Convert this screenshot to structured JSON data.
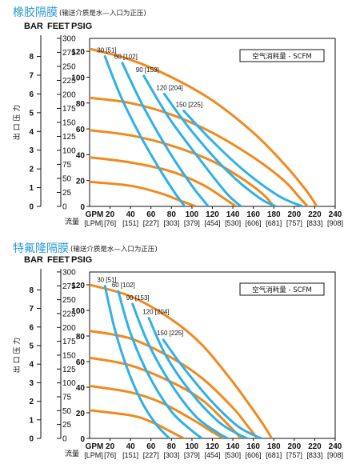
{
  "chart_data": [
    {
      "type": "line",
      "title": "橡胶隔膜",
      "subtitle": "(输送介质是水—入口为正压)",
      "y_unit_labels": [
        "BAR",
        "FEET",
        "PSIG"
      ],
      "y_ticks_bar": [
        "0",
        "1",
        "2",
        "3",
        "4",
        "5",
        "6",
        "7",
        "8"
      ],
      "y_ticks_feet": [
        "0",
        "25",
        "50",
        "75",
        "100",
        "125",
        "150",
        "175",
        "200",
        "225",
        "250",
        "275",
        "300"
      ],
      "y_ticks_psig": [
        "0",
        "20",
        "40",
        "60",
        "80",
        "100",
        "120"
      ],
      "ylabel": "出 口 压 力",
      "xlabel": "流量",
      "x_unit_gpm": "GPM",
      "x_unit_lpm": "[LPM]",
      "x_ticks_gpm": [
        "20",
        "40",
        "60",
        "80",
        "100",
        "120",
        "140",
        "160",
        "180",
        "200",
        "220",
        "240"
      ],
      "x_ticks_lpm": [
        "[76]",
        "[151]",
        "[227]",
        "[303]",
        "[379]",
        "[454]",
        "[530]",
        "[606]",
        "[681]",
        "[757]",
        "[833]",
        "[908]"
      ],
      "xlim": [
        0,
        240
      ],
      "ylim": [
        0,
        130
      ],
      "legend": "空气消耗量 - SCFM",
      "legend_position": "top-right",
      "pressure_curves": [
        {
          "x": [
            0,
            40,
            80,
            120,
            160,
            190,
            212,
            222
          ],
          "y": [
            122,
            113.5,
            100,
            82,
            57,
            33,
            12,
            0
          ]
        },
        {
          "x": [
            0,
            40,
            80,
            120,
            160,
            190,
            205,
            213
          ],
          "y": [
            84,
            80,
            71,
            57,
            38,
            20,
            7,
            0
          ]
        },
        {
          "x": [
            0,
            40,
            80,
            120,
            150,
            170,
            180
          ],
          "y": [
            59,
            55,
            47,
            35,
            21,
            9,
            0
          ]
        },
        {
          "x": [
            0,
            40,
            80,
            110,
            130,
            143
          ],
          "y": [
            38,
            34,
            27,
            17,
            7,
            0
          ]
        },
        {
          "x": [
            0,
            40,
            70,
            90,
            104
          ],
          "y": [
            19,
            16,
            10,
            4,
            0
          ]
        }
      ],
      "air_curves": [
        {
          "label": "30 [51]",
          "x": [
            15,
            30,
            48,
            66,
            82,
            93
          ],
          "y": [
            116,
            86,
            57,
            32,
            12,
            0
          ]
        },
        {
          "label": "60 [102]",
          "x": [
            32,
            52,
            78,
            100,
            116
          ],
          "y": [
            111,
            78,
            42,
            16,
            0
          ]
        },
        {
          "label": "90 [153]",
          "x": [
            53,
            78,
            110,
            134,
            148
          ],
          "y": [
            101,
            68,
            34,
            10,
            0
          ]
        },
        {
          "label": "120 [204]",
          "x": [
            73,
            100,
            135,
            165,
            182
          ],
          "y": [
            87,
            58,
            27,
            7,
            0
          ]
        },
        {
          "label": "150 [225]",
          "x": [
            92,
            118,
            152,
            185,
            208
          ],
          "y": [
            74,
            52,
            27,
            8,
            0
          ]
        }
      ]
    },
    {
      "type": "line",
      "title": "特氟隆隔膜",
      "subtitle": "(输送介质是水—入口为正压)",
      "y_unit_labels": [
        "BAR",
        "FEET",
        "PSIG"
      ],
      "y_ticks_bar": [
        "0",
        "1",
        "2",
        "3",
        "4",
        "5",
        "6",
        "7",
        "8"
      ],
      "y_ticks_feet": [
        "0",
        "25",
        "50",
        "75",
        "100",
        "125",
        "150",
        "175",
        "200",
        "225",
        "250",
        "275",
        "300"
      ],
      "y_ticks_psig": [
        "0",
        "20",
        "40",
        "60",
        "80",
        "100",
        "120"
      ],
      "ylabel": "出 口 压 力",
      "xlabel": "流量",
      "x_unit_gpm": "GPM",
      "x_unit_lpm": "[LPM]",
      "x_ticks_gpm": [
        "20",
        "40",
        "60",
        "80",
        "100",
        "120",
        "140",
        "160",
        "180",
        "200",
        "220",
        "240"
      ],
      "x_ticks_lpm": [
        "[76]",
        "[151]",
        "[227]",
        "[303]",
        "[379]",
        "[454]",
        "[530]",
        "[606]",
        "[681]",
        "[757]",
        "[833]",
        "[908]"
      ],
      "xlim": [
        0,
        240
      ],
      "ylim": [
        0,
        130
      ],
      "legend": "空气消耗量 - SCFM",
      "legend_position": "top-right",
      "pressure_curves": [
        {
          "x": [
            0,
            40,
            80,
            110,
            140,
            160,
            172,
            178
          ],
          "y": [
            120,
            111,
            93,
            73,
            44,
            22,
            8,
            0
          ]
        },
        {
          "x": [
            0,
            40,
            80,
            110,
            140,
            155,
            164
          ],
          "y": [
            84,
            78,
            63,
            47,
            24,
            9,
            0
          ]
        },
        {
          "x": [
            0,
            40,
            80,
            110,
            135,
            148
          ],
          "y": [
            63,
            57,
            44,
            30,
            11,
            0
          ]
        },
        {
          "x": [
            0,
            40,
            70,
            100,
            120,
            131
          ],
          "y": [
            41,
            36,
            28,
            15,
            5,
            0
          ]
        },
        {
          "x": [
            0,
            40,
            60,
            80,
            92
          ],
          "y": [
            22,
            18,
            13,
            5,
            0
          ]
        }
      ],
      "air_curves": [
        {
          "label": "30 [51]",
          "x": [
            15,
            25,
            38,
            52,
            66,
            78
          ],
          "y": [
            119,
            84,
            52,
            27,
            10,
            0
          ]
        },
        {
          "label": "60 [102]",
          "x": [
            28,
            40,
            58,
            80,
            100,
            110
          ],
          "y": [
            115,
            82,
            49,
            21,
            6,
            0
          ]
        },
        {
          "label": "90 [153]",
          "x": [
            42,
            58,
            80,
            104,
            126,
            135
          ],
          "y": [
            105,
            73,
            42,
            17,
            4,
            0
          ]
        },
        {
          "label": "120 [204]",
          "x": [
            58,
            75,
            100,
            126,
            146,
            154
          ],
          "y": [
            94,
            64,
            35,
            13,
            3,
            0
          ]
        },
        {
          "label": "150 [225]",
          "x": [
            72,
            92,
            118,
            144,
            162,
            168
          ],
          "y": [
            77,
            55,
            30,
            10,
            2,
            0
          ]
        }
      ]
    }
  ],
  "colors": {
    "pressure_curve": "#f08a1e",
    "air_curve": "#2fb0e6",
    "title": "#2d9ad6"
  }
}
